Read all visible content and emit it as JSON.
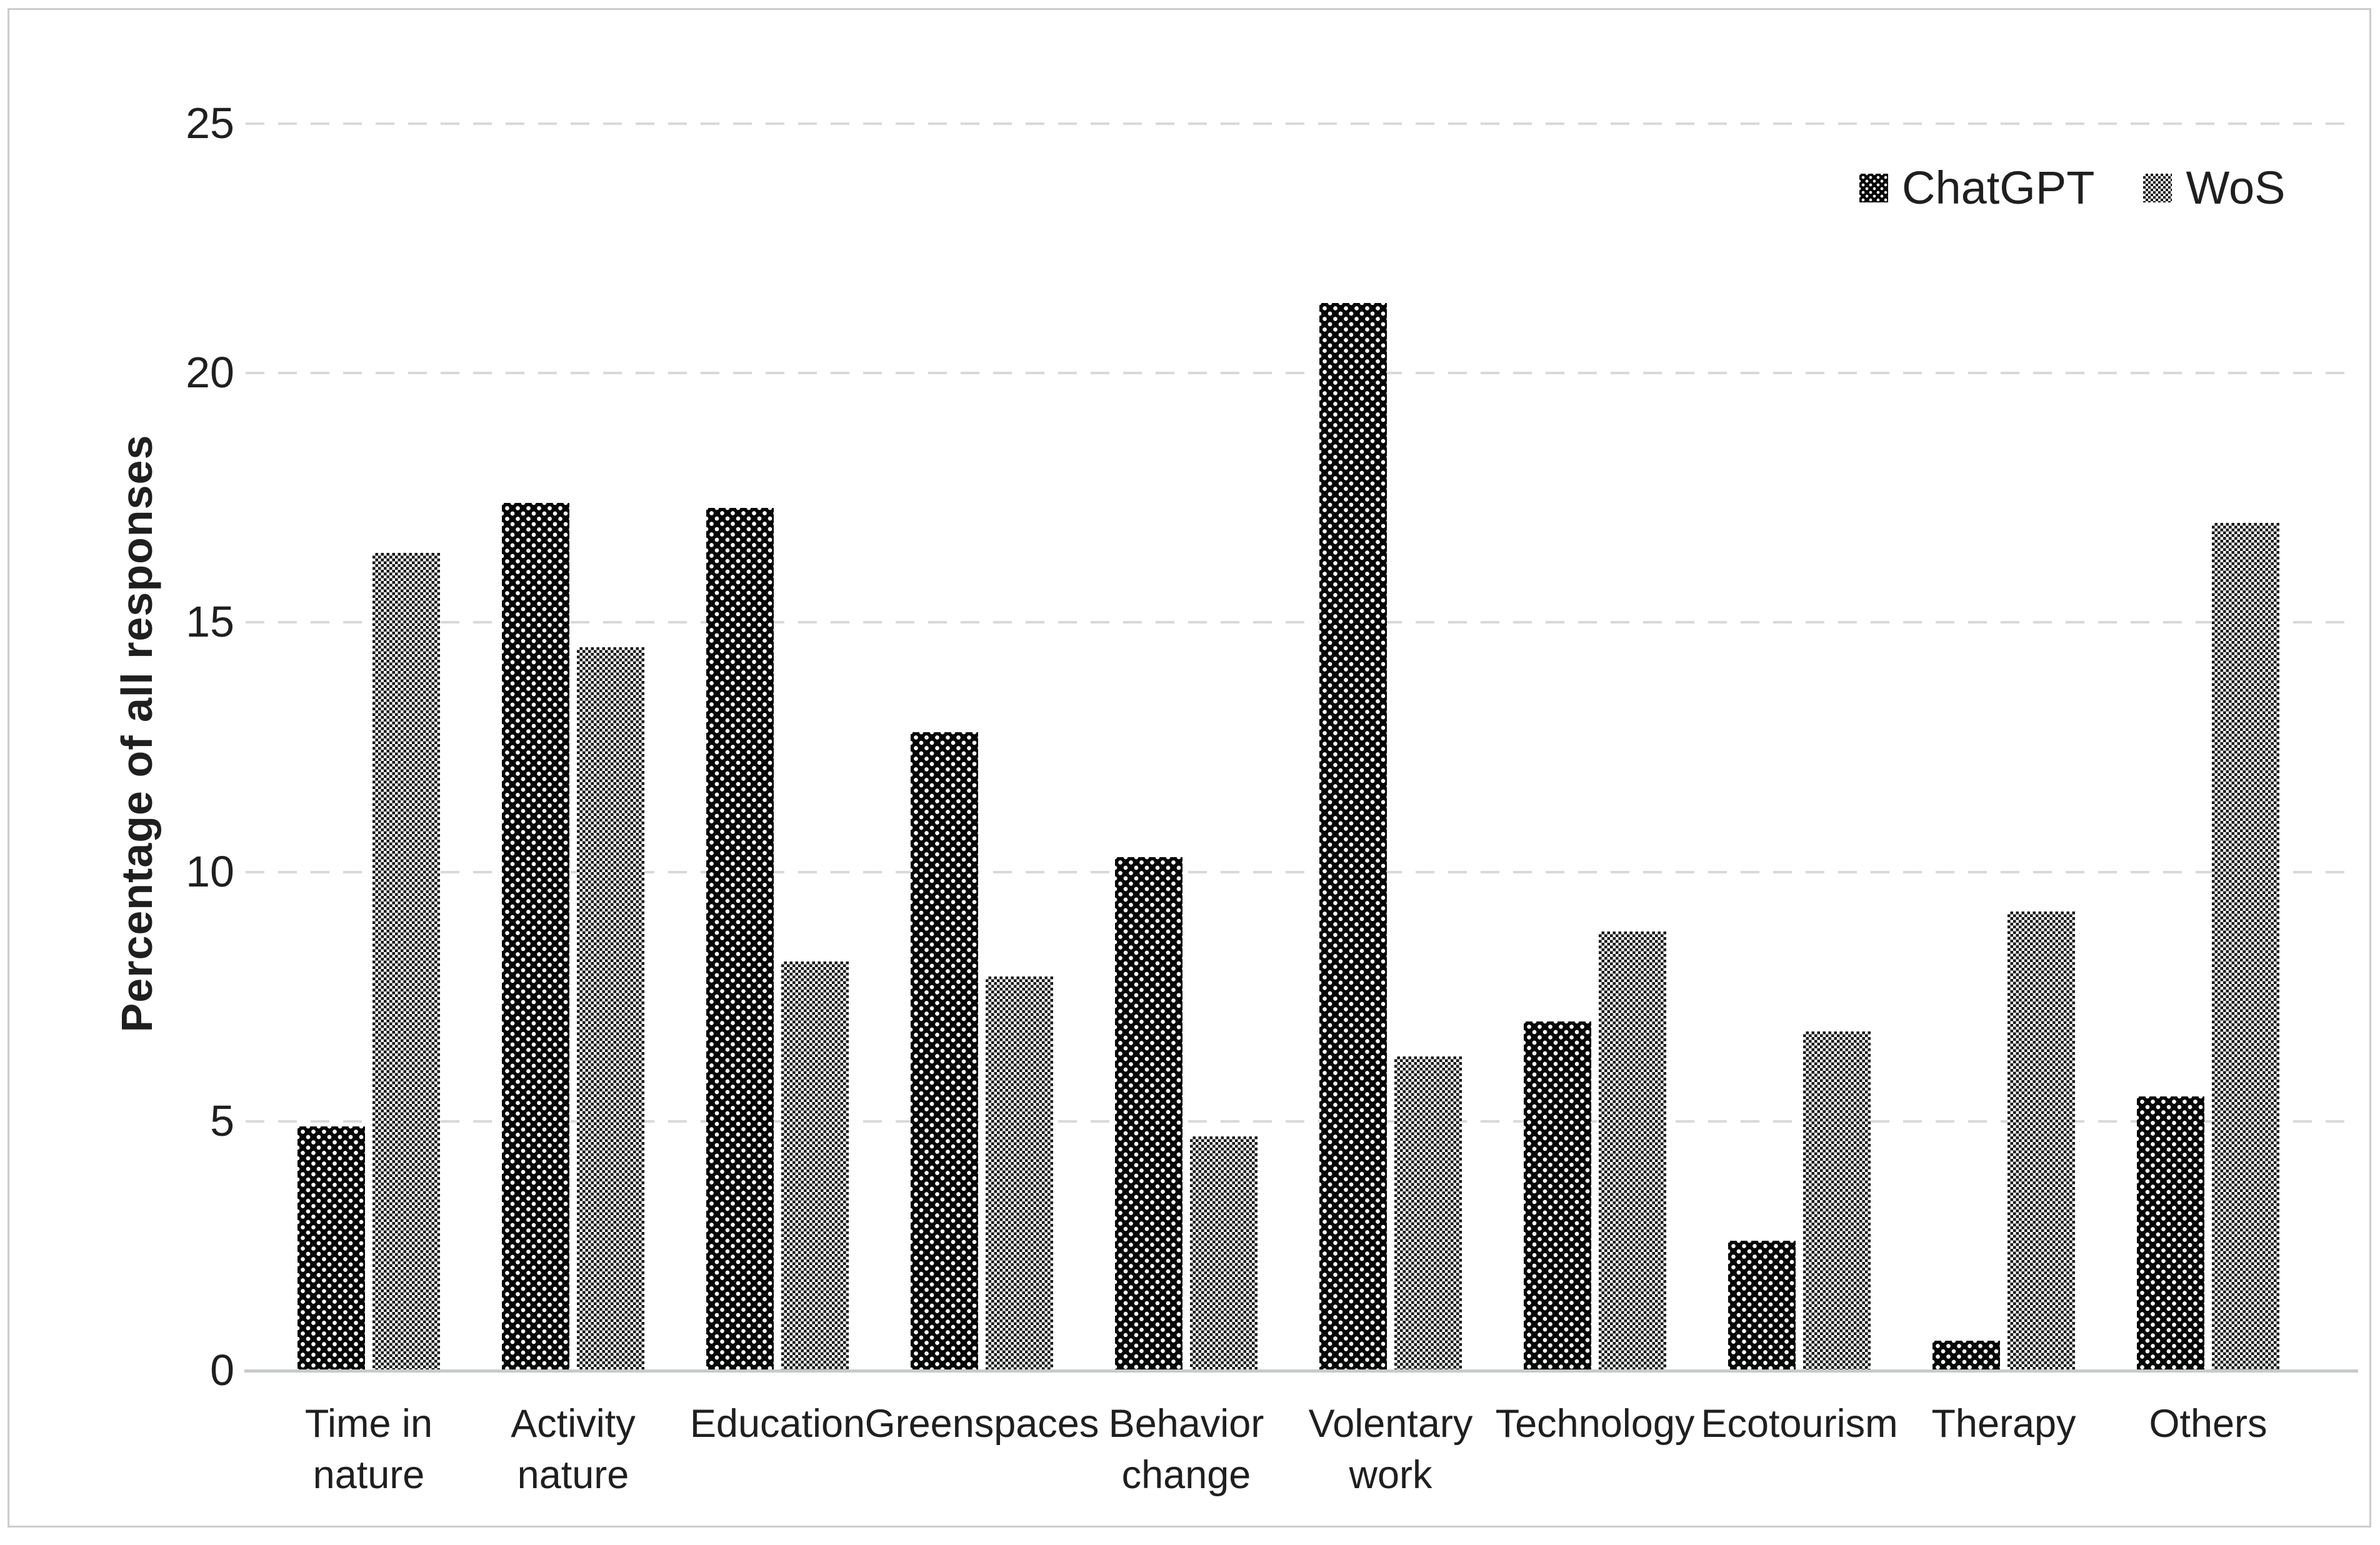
{
  "figure": {
    "background_color": "#ffffff",
    "border_color": "#c9cdd1",
    "text_color": "#1f1f1f",
    "gridline_color": "#d9d9d9",
    "axis_line_color": "#c6cacc",
    "chatgpt_pattern_color": "#060606",
    "wos_pattern_color": "#141414"
  },
  "legend": {
    "position": "top-right",
    "items": [
      {
        "label": "ChatGPT",
        "marker": "black-dotted-square"
      },
      {
        "label": "WoS",
        "marker": "gray-checker-square"
      }
    ]
  },
  "chart_data": {
    "type": "bar",
    "title": "",
    "xlabel": "",
    "ylabel": "Percentage of all responses",
    "ylim": [
      0,
      25
    ],
    "yticks": [
      0,
      5,
      10,
      15,
      20,
      25
    ],
    "grid": "horizontal-dashed",
    "legend_position": "top-right",
    "categories": [
      "Time in\nnature",
      "Activity\nnature",
      "Education",
      "Greenspaces",
      "Behavior\nchange",
      "Volentary\nwork",
      "Technology",
      "Ecotourism",
      "Therapy",
      "Others"
    ],
    "series": [
      {
        "name": "ChatGPT",
        "pattern": "black-dotted",
        "values": [
          4.9,
          17.4,
          17.3,
          12.8,
          10.3,
          21.4,
          7.0,
          2.6,
          0.6,
          5.5
        ]
      },
      {
        "name": "WoS",
        "pattern": "gray-checker",
        "values": [
          16.4,
          14.5,
          8.2,
          7.9,
          4.7,
          6.3,
          8.8,
          6.8,
          9.2,
          17.0
        ]
      }
    ]
  }
}
